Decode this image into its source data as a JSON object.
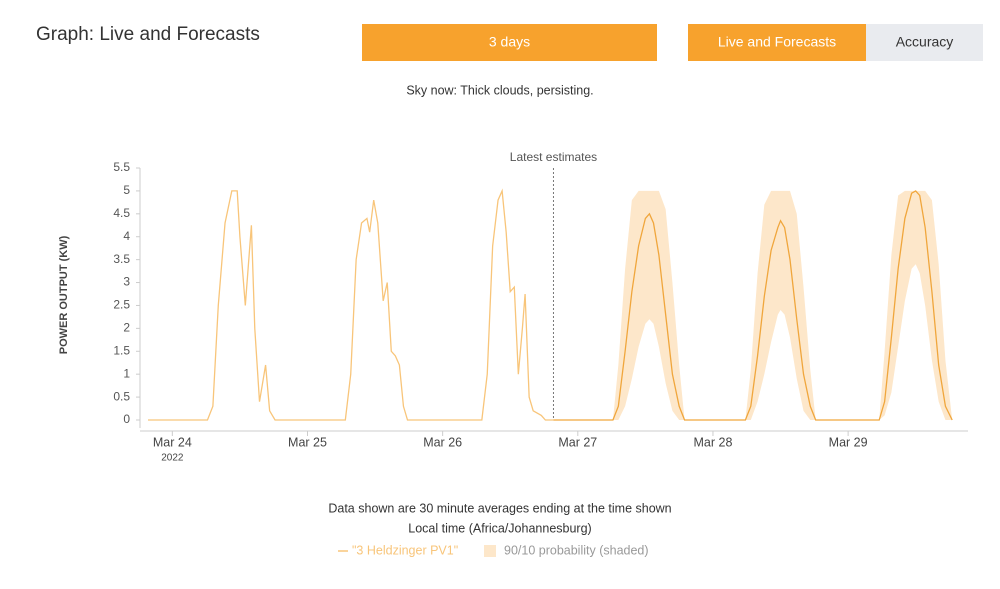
{
  "header": {
    "title": "Graph: Live and Forecasts"
  },
  "buttons": [
    "3 days",
    "Live and Forecasts",
    "Accuracy"
  ],
  "sky_now": "Sky now: Thick clouds, persisting.",
  "chart_data": {
    "type": "line",
    "y_label": "POWER OUTPUT (KW)",
    "xlim": [
      -0.18,
      5.85
    ],
    "xticks": [
      {
        "value": 0,
        "label": "Mar 24"
      },
      {
        "value": 1,
        "label": "Mar 25"
      },
      {
        "value": 2,
        "label": "Mar 26"
      },
      {
        "value": 3,
        "label": "Mar 27"
      },
      {
        "value": 4,
        "label": "Mar 28"
      },
      {
        "value": 5,
        "label": "Mar 29"
      }
    ],
    "year_label": "2022",
    "ylim": [
      0,
      5.5
    ],
    "yticks": [
      0,
      0.5,
      1,
      1.5,
      2,
      2.5,
      3,
      3.5,
      4,
      4.5,
      5,
      5.5
    ],
    "annotation": {
      "text": "Latest estimates",
      "x": 2.82
    },
    "series": [
      {
        "name": "\"3 Heldzinger PV1\"",
        "color": "#f8c57a",
        "x": [
          -0.18,
          0.26,
          0.3,
          0.34,
          0.39,
          0.44,
          0.48,
          0.5,
          0.54,
          0.585,
          0.61,
          0.645,
          0.69,
          0.72,
          0.76,
          1.28,
          1.32,
          1.36,
          1.4,
          1.44,
          1.46,
          1.49,
          1.52,
          1.56,
          1.59,
          1.62,
          1.65,
          1.68,
          1.71,
          1.74,
          2.29,
          2.33,
          2.37,
          2.41,
          2.44,
          2.47,
          2.5,
          2.53,
          2.56,
          2.59,
          2.61,
          2.64,
          2.67,
          2.73,
          2.76,
          2.82
        ],
        "values": [
          0,
          0,
          0.3,
          2.5,
          4.3,
          5.0,
          5.0,
          4.0,
          2.5,
          4.25,
          2.0,
          0.4,
          1.2,
          0.2,
          0,
          0,
          1.0,
          3.5,
          4.3,
          4.4,
          4.1,
          4.8,
          4.3,
          2.6,
          3.0,
          1.5,
          1.4,
          1.2,
          0.3,
          0,
          0,
          1.0,
          3.8,
          4.8,
          5.0,
          4.1,
          2.8,
          2.9,
          1.0,
          2.0,
          2.75,
          0.5,
          0.2,
          0.1,
          0,
          0
        ]
      },
      {
        "color": "#f0a63c",
        "x": [
          2.82,
          3.26,
          3.3,
          3.35,
          3.4,
          3.45,
          3.5,
          3.53,
          3.56,
          3.6,
          3.65,
          3.7,
          3.75,
          3.79,
          4.24,
          4.28,
          4.33,
          4.38,
          4.43,
          4.48,
          4.5,
          4.53,
          4.57,
          4.62,
          4.67,
          4.72,
          4.76,
          5.23,
          5.27,
          5.32,
          5.37,
          5.42,
          5.47,
          5.5,
          5.53,
          5.57,
          5.62,
          5.67,
          5.72,
          5.77
        ],
        "values": [
          0,
          0,
          0.3,
          1.5,
          2.8,
          3.8,
          4.4,
          4.5,
          4.3,
          3.6,
          2.3,
          1.0,
          0.3,
          0,
          0,
          0.3,
          1.4,
          2.7,
          3.7,
          4.2,
          4.35,
          4.2,
          3.5,
          2.2,
          1.0,
          0.3,
          0,
          0,
          0.4,
          1.8,
          3.3,
          4.4,
          4.95,
          5.0,
          4.9,
          4.2,
          2.8,
          1.2,
          0.3,
          0
        ]
      }
    ],
    "band": {
      "name": "90/10 probability (shaded)",
      "color": "#fde7ca",
      "x": [
        2.82,
        3.26,
        3.3,
        3.35,
        3.4,
        3.45,
        3.5,
        3.53,
        3.56,
        3.6,
        3.65,
        3.7,
        3.75,
        3.79,
        4.24,
        4.28,
        4.33,
        4.38,
        4.43,
        4.48,
        4.5,
        4.53,
        4.57,
        4.62,
        4.67,
        4.72,
        4.76,
        5.23,
        5.27,
        5.32,
        5.37,
        5.42,
        5.47,
        5.5,
        5.53,
        5.57,
        5.62,
        5.67,
        5.72,
        5.77
      ],
      "upper": [
        0,
        0,
        1.2,
        3.3,
        4.8,
        5,
        5,
        5,
        5,
        5,
        4.6,
        3.0,
        1.2,
        0,
        0,
        1.1,
        3.2,
        4.7,
        5,
        5,
        5,
        5,
        5,
        4.5,
        2.9,
        1.1,
        0,
        0,
        1.5,
        3.6,
        4.9,
        5,
        5,
        5,
        5,
        5,
        4.8,
        3.4,
        1.3,
        0
      ],
      "lower": [
        0,
        0,
        0,
        0.3,
        0.9,
        1.6,
        2.1,
        2.2,
        2.1,
        1.6,
        0.8,
        0.2,
        0,
        0,
        0,
        0,
        0.4,
        1.0,
        1.7,
        2.3,
        2.4,
        2.3,
        1.8,
        0.9,
        0.2,
        0,
        0,
        0,
        0.1,
        0.6,
        1.6,
        2.6,
        3.3,
        3.4,
        3.2,
        2.5,
        1.3,
        0.4,
        0,
        0
      ]
    }
  },
  "notes": [
    "Data shown are 30 minute averages ending at the time shown",
    "Local time (Africa/Johannesburg)"
  ]
}
